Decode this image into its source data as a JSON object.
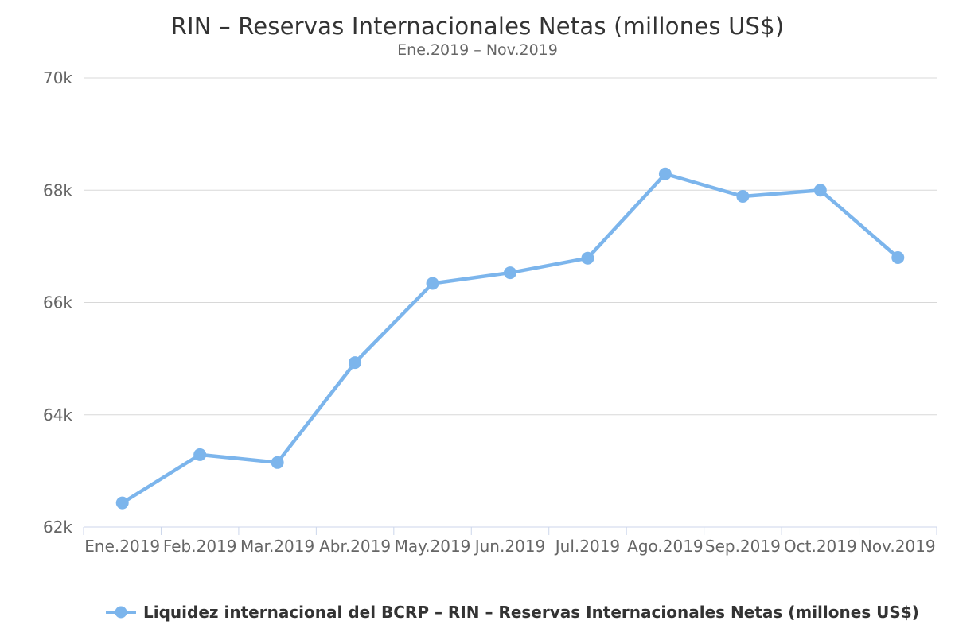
{
  "chart": {
    "title": "RIN – Reservas Internacionales Netas (millones US$)",
    "subtitle": "Ene.2019 – Nov.2019"
  },
  "legend": {
    "label": "Liquidez internacional del BCRP – RIN – Reservas Internacionales Netas (millones US$)"
  },
  "colors": {
    "line": "#7cb5ec",
    "grid": "#d8d8d8",
    "axis": "#ccd6eb",
    "title_text": "#333333",
    "subtitle_text": "#666666",
    "axis_label_text": "#666666",
    "legend_text": "#333333"
  },
  "chart_data": {
    "type": "line",
    "title": "RIN – Reservas Internacionales Netas (millones US$)",
    "subtitle": "Ene.2019 – Nov.2019",
    "categories": [
      "Ene.2019",
      "Feb.2019",
      "Mar.2019",
      "Abr.2019",
      "May.2019",
      "Jun.2019",
      "Jul.2019",
      "Ago.2019",
      "Sep.2019",
      "Oct.2019",
      "Nov.2019"
    ],
    "series": [
      {
        "name": "Liquidez internacional del BCRP – RIN – Reservas Internacionales Netas (millones US$)",
        "values": [
          62430,
          63290,
          63150,
          64930,
          66340,
          66530,
          66790,
          68290,
          67890,
          68000,
          66800
        ]
      }
    ],
    "xlabel": "",
    "ylabel": "",
    "ylim": [
      62000,
      70000
    ],
    "yticks": [
      62000,
      64000,
      66000,
      68000,
      70000
    ],
    "ytick_labels": [
      "62k",
      "64k",
      "66k",
      "68k",
      "70k"
    ],
    "grid": true,
    "legend_position": "bottom"
  }
}
